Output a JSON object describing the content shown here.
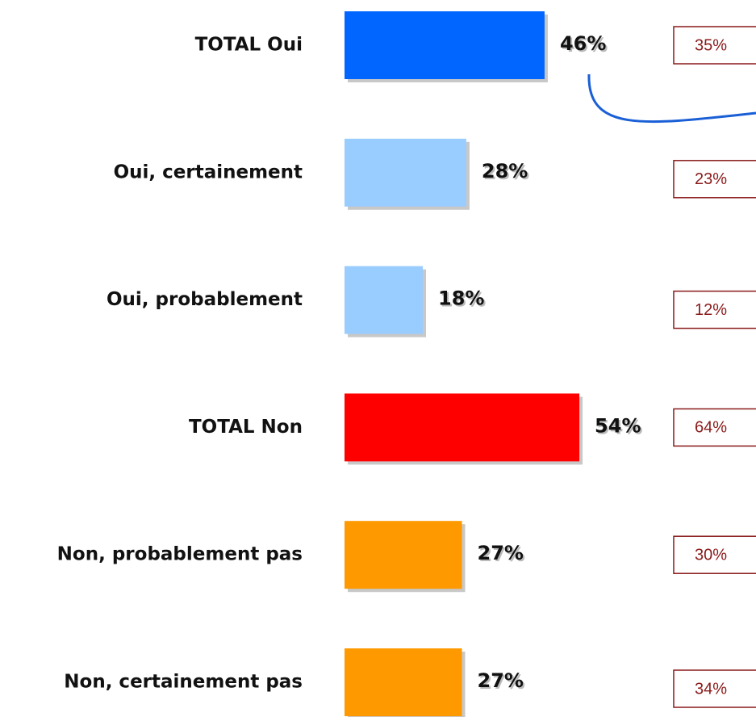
{
  "chart_data": {
    "type": "bar",
    "orientation": "horizontal",
    "categories": [
      "TOTAL Oui",
      "Oui, certainement",
      "Oui, probablement",
      "TOTAL Non",
      "Non, probablement pas",
      "Non, certainement pas"
    ],
    "values": [
      46,
      28,
      18,
      54,
      27,
      27
    ],
    "value_labels": [
      "46%",
      "28%",
      "18%",
      "54%",
      "27%",
      "27%"
    ],
    "colors": [
      "#0066ff",
      "#99ccff",
      "#99ccff",
      "#ff0000",
      "#ff9900",
      "#ff9900"
    ],
    "comparison": {
      "values": [
        35,
        23,
        12,
        64,
        30,
        34
      ],
      "value_labels": [
        "35%",
        "23%",
        "12%",
        "64%",
        "30%",
        "34%"
      ],
      "color": "#8b1a1a"
    }
  }
}
